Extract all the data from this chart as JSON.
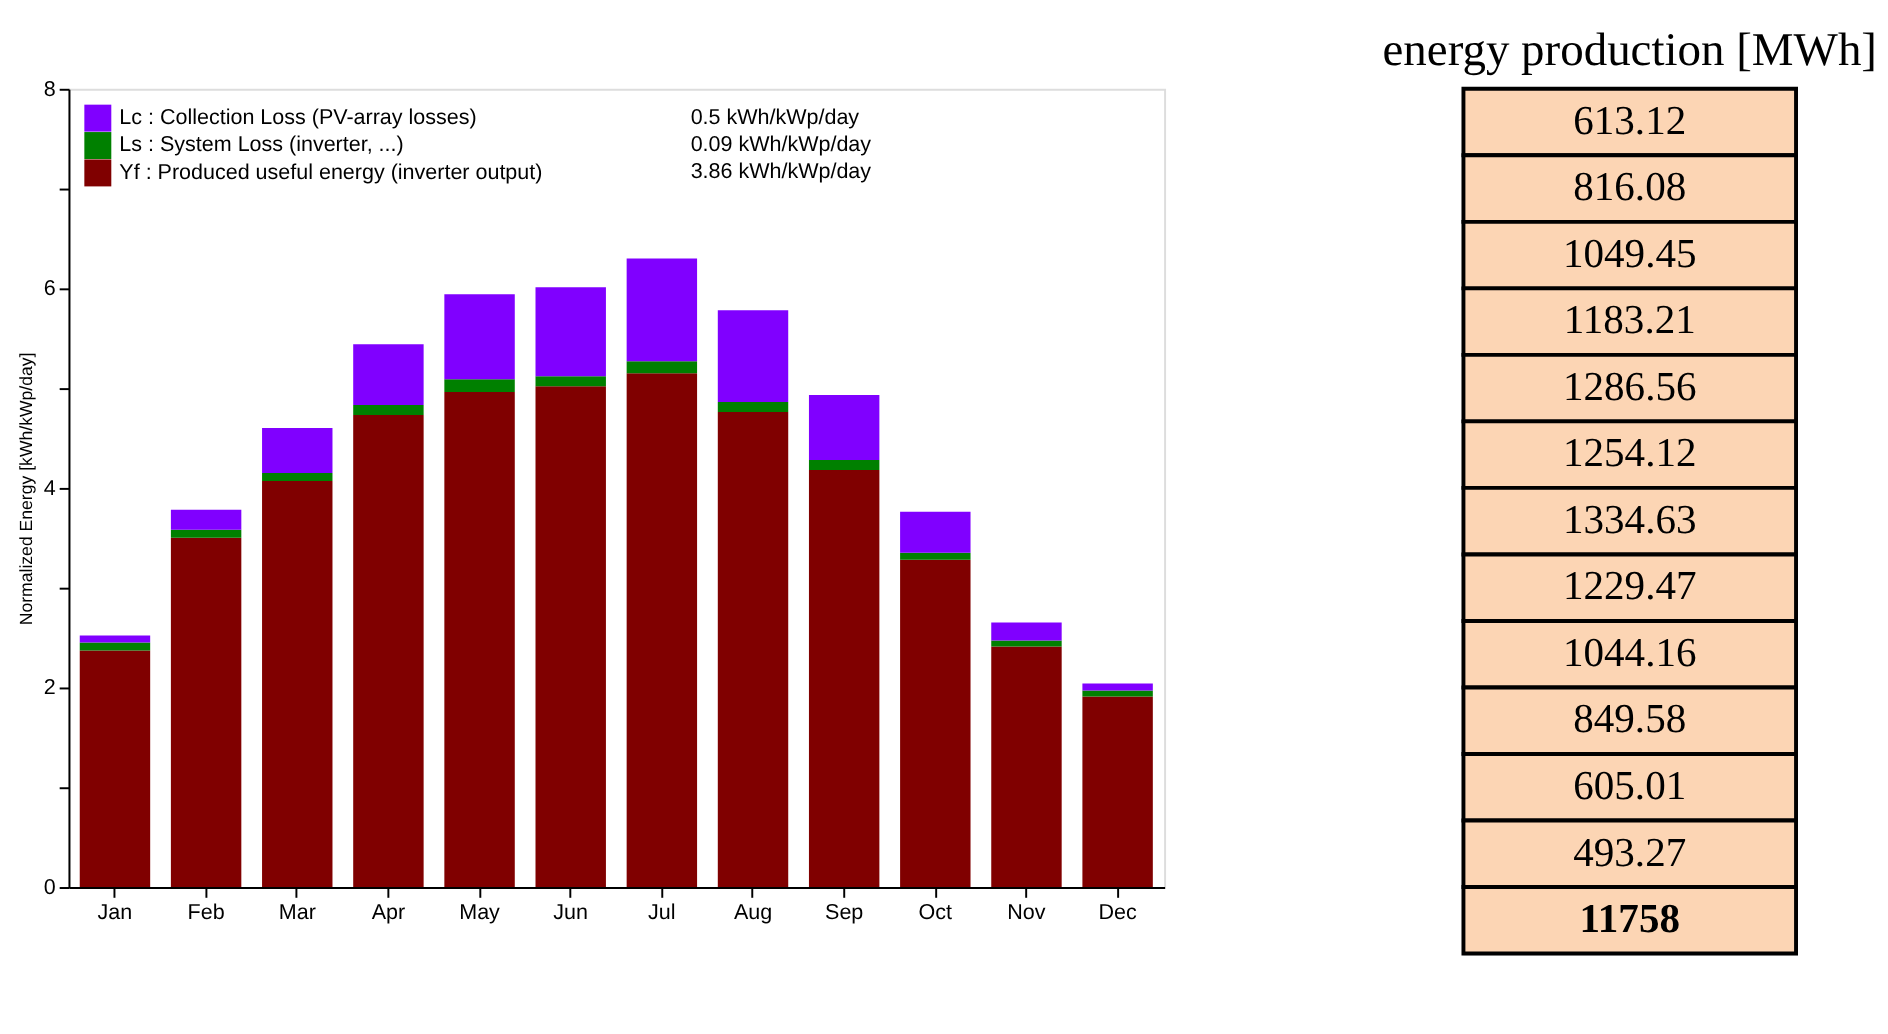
{
  "chart_data": [
    {
      "type": "bar",
      "stacked": true,
      "ylabel": "Normalized Energy [kWh/kWp/day]",
      "categories": [
        "Jan",
        "Feb",
        "Mar",
        "Apr",
        "May",
        "Jun",
        "Jul",
        "Aug",
        "Sep",
        "Oct",
        "Nov",
        "Dec"
      ],
      "series": [
        {
          "name": "Yf : Produced useful energy  (inverter output)",
          "color": "#800000",
          "values": [
            2.37,
            3.5,
            4.07,
            4.73,
            4.96,
            5.02,
            5.15,
            4.76,
            4.18,
            3.28,
            2.41,
            1.91
          ]
        },
        {
          "name": "Ls : System Loss  (inverter, ...)",
          "color": "#008000",
          "values": [
            0.08,
            0.08,
            0.08,
            0.1,
            0.13,
            0.1,
            0.12,
            0.1,
            0.1,
            0.07,
            0.06,
            0.06
          ]
        },
        {
          "name": "Lc : Collection Loss (PV-array losses)",
          "color": "#8000ff",
          "values": [
            0.07,
            0.2,
            0.45,
            0.61,
            0.85,
            0.89,
            1.03,
            0.92,
            0.65,
            0.41,
            0.18,
            0.07
          ]
        }
      ],
      "annotations": [
        "3.86 kWh/kWp/day",
        "0.09 kWh/kWp/day",
        "0.5 kWh/kWp/day"
      ],
      "ylim": [
        0,
        8
      ],
      "yticks": [
        0,
        {
          "value": 1,
          "label": null
        },
        2,
        {
          "value": 3,
          "label": null
        },
        4,
        {
          "value": 5,
          "label": null
        },
        6,
        {
          "value": 7,
          "label": null
        },
        8
      ],
      "legend": "top left",
      "grid": false
    },
    {
      "type": "other",
      "title": "energy production [MWh]",
      "data_labels": true,
      "values": [
        613.12,
        816.08,
        1049.45,
        1183.21,
        1286.56,
        1254.12,
        1334.63,
        1229.47,
        1044.16,
        849.58,
        605.01,
        493.27
      ],
      "totals": [
        "11758"
      ],
      "colors": [
        "#fcd5b4",
        "#fcd5b4",
        "#fcd5b4",
        "#fcd5b4",
        "#fcd5b4",
        "#fcd5b4",
        "#fcd5b4",
        "#fcd5b4",
        "#fcd5b4",
        "#fcd5b4",
        "#fcd5b4",
        "#fcd5b4"
      ]
    }
  ]
}
